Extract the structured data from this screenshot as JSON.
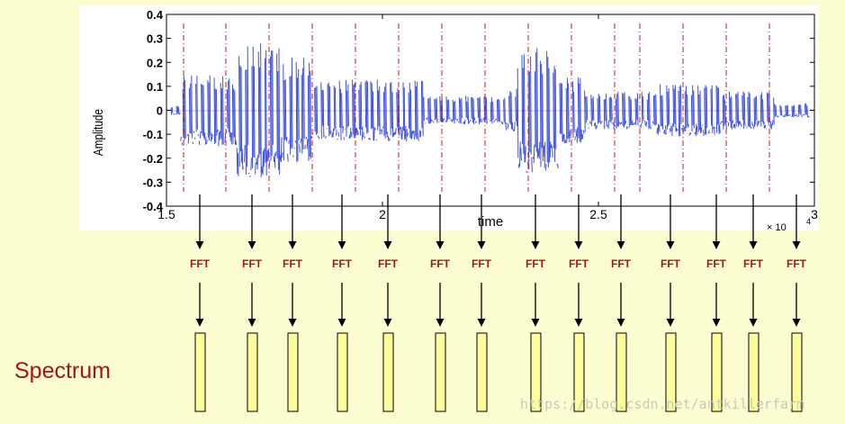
{
  "plot": {
    "ylabel": "Amplitude",
    "xlabel": "time",
    "x_multiplier": "× 10",
    "x_multiplier_exp": "4",
    "x_ticks": [
      "1.5",
      "2",
      "2.5",
      "3"
    ],
    "y_ticks": [
      "0.4",
      "0.3",
      "0.2",
      "0.1",
      "0",
      "-0.1",
      "-0.2",
      "-0.3",
      "-0.4"
    ],
    "xlim": [
      1.5,
      3.0
    ],
    "ylim": [
      -0.4,
      0.4
    ],
    "waveform_color": "#1a2fe0",
    "frame_marker_color": "#c01818"
  },
  "diagram": {
    "frame_count": 15,
    "step_label": "FFT",
    "step_label_color": "#a81414",
    "output_block_fill": "#fdfd9c",
    "output_label": "Spectrum"
  },
  "watermark": "https://blog.csdn.net/antkillerfarm"
}
